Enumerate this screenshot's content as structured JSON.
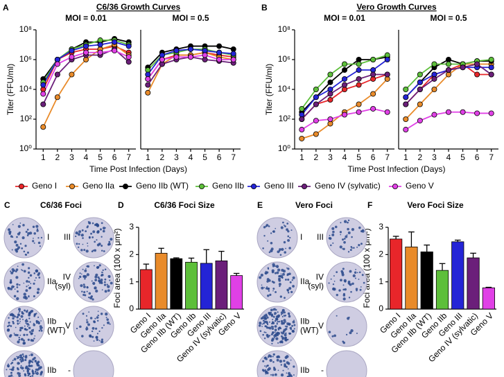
{
  "chart_data": [
    {
      "type": "line",
      "panel_label": "A",
      "title": "C6/36 Growth Curves",
      "subtitle": "MOI = 0.01",
      "x_label": "Time Post Infection (Days)",
      "y_label": "Titer (FFU/ml)",
      "x": [
        1,
        2,
        3,
        4,
        5,
        6,
        7
      ],
      "xlim": [
        0.5,
        7.5
      ],
      "xticks": [
        1,
        2,
        3,
        4,
        5,
        6,
        7
      ],
      "log_y": true,
      "ylim": [
        1,
        100000000
      ],
      "yticks": [
        {
          "value": 1,
          "label": "10⁰"
        },
        {
          "value": 100,
          "label": "10²"
        },
        {
          "value": 10000,
          "label": "10⁴"
        },
        {
          "value": 1000000,
          "label": "10⁶"
        },
        {
          "value": 100000000,
          "label": "10⁸"
        }
      ],
      "series": [
        {
          "name": "Geno I",
          "color": "#e8262a",
          "values": [
            10000,
            1000000,
            3000000,
            5000000,
            5000000,
            8000000,
            3000000
          ]
        },
        {
          "name": "Geno IIa",
          "color": "#e98b2a",
          "values": [
            30,
            3000,
            100000,
            1000000,
            5000000,
            10000000,
            2000000
          ]
        },
        {
          "name": "Geno IIb (WT)",
          "color": "#000000",
          "values": [
            50000,
            1000000,
            5000000,
            15000000,
            15000000,
            25000000,
            15000000
          ]
        },
        {
          "name": "Geno IIb",
          "color": "#5dbf3a",
          "values": [
            30000,
            1000000,
            5000000,
            10000000,
            20000000,
            20000000,
            10000000
          ]
        },
        {
          "name": "Geno III",
          "color": "#2424d6",
          "values": [
            20000,
            1000000,
            4000000,
            8000000,
            10000000,
            15000000,
            8000000
          ]
        },
        {
          "name": "Geno IV (sylvatic)",
          "color": "#6b1f7a",
          "values": [
            1000,
            100000,
            1000000,
            2000000,
            2000000,
            5000000,
            700000
          ]
        },
        {
          "name": "Geno V",
          "color": "#e040e6",
          "values": [
            5000,
            500000,
            1500000,
            3000000,
            3000000,
            4000000,
            1500000
          ]
        }
      ]
    },
    {
      "type": "line",
      "subtitle": "MOI = 0.5",
      "x": [
        1,
        2,
        3,
        4,
        5,
        6,
        7
      ],
      "xlim": [
        0.5,
        7.5
      ],
      "xticks": [
        1,
        2,
        3,
        4,
        5,
        6,
        7
      ],
      "log_y": true,
      "ylim": [
        1,
        100000000
      ],
      "series": [
        {
          "name": "Geno I",
          "color": "#e8262a",
          "values": [
            50000,
            1000000,
            2000000,
            2000000,
            3000000,
            2000000,
            1500000
          ]
        },
        {
          "name": "Geno IIa",
          "color": "#e98b2a",
          "values": [
            6000,
            500000,
            2000000,
            2000000,
            3000000,
            1500000,
            1000000
          ]
        },
        {
          "name": "Geno IIb (WT)",
          "color": "#000000",
          "values": [
            300000,
            3000000,
            5000000,
            8000000,
            8000000,
            8000000,
            5000000
          ]
        },
        {
          "name": "Geno IIb",
          "color": "#5dbf3a",
          "values": [
            200000,
            2000000,
            3000000,
            5000000,
            5000000,
            3000000,
            2000000
          ]
        },
        {
          "name": "Geno III",
          "color": "#2424d6",
          "values": [
            100000,
            2000000,
            4000000,
            5000000,
            4000000,
            3000000,
            2500000
          ]
        },
        {
          "name": "Geno IV (sylvatic)",
          "color": "#6b1f7a",
          "values": [
            20000,
            500000,
            1000000,
            1500000,
            1000000,
            800000,
            600000
          ]
        },
        {
          "name": "Geno V",
          "color": "#e040e6",
          "values": [
            50000,
            1000000,
            1500000,
            1500000,
            2000000,
            1000000,
            1000000
          ]
        }
      ]
    },
    {
      "type": "line",
      "panel_label": "B",
      "title": "Vero Growth Curves",
      "subtitle": "MOI = 0.01",
      "x_label": "Time Post Infection (Days)",
      "y_label": "Titer (FFU/ml)",
      "x": [
        1,
        2,
        3,
        4,
        5,
        6,
        7
      ],
      "xlim": [
        0.5,
        7.5
      ],
      "xticks": [
        1,
        2,
        3,
        4,
        5,
        6,
        7
      ],
      "log_y": true,
      "ylim": [
        1,
        100000000
      ],
      "yticks": [
        {
          "value": 1,
          "label": "10⁰"
        },
        {
          "value": 100,
          "label": "10²"
        },
        {
          "value": 10000,
          "label": "10⁴"
        },
        {
          "value": 1000000,
          "label": "10⁶"
        },
        {
          "value": 100000000,
          "label": "10⁸"
        }
      ],
      "series": [
        {
          "name": "Geno I",
          "color": "#e8262a",
          "values": [
            100,
            1000,
            2000,
            10000,
            20000,
            50000,
            100000
          ]
        },
        {
          "name": "Geno IIa",
          "color": "#e98b2a",
          "values": [
            5,
            10,
            50,
            300,
            1000,
            5000,
            50000
          ]
        },
        {
          "name": "Geno IIb (WT)",
          "color": "#000000",
          "values": [
            300,
            3000,
            30000,
            200000,
            1000000,
            1000000,
            1500000
          ]
        },
        {
          "name": "Geno IIb",
          "color": "#5dbf3a",
          "values": [
            500,
            10000,
            100000,
            500000,
            500000,
            1000000,
            2000000
          ]
        },
        {
          "name": "Geno III",
          "color": "#2424d6",
          "values": [
            200,
            3000,
            10000,
            50000,
            200000,
            200000,
            1000000
          ]
        },
        {
          "name": "Geno IV (sylvatic)",
          "color": "#6b1f7a",
          "values": [
            100,
            1000,
            5000,
            20000,
            50000,
            100000,
            100000
          ]
        },
        {
          "name": "Geno V",
          "color": "#e040e6",
          "values": [
            20,
            80,
            100,
            200,
            300,
            500,
            300
          ]
        }
      ]
    },
    {
      "type": "line",
      "subtitle": "MOI = 0.5",
      "x": [
        1,
        2,
        3,
        4,
        5,
        6,
        7
      ],
      "xlim": [
        0.5,
        7.5
      ],
      "xticks": [
        1,
        2,
        3,
        4,
        5,
        6,
        7
      ],
      "log_y": true,
      "ylim": [
        1,
        100000000
      ],
      "series": [
        {
          "name": "Geno I",
          "color": "#e8262a",
          "values": [
            1000,
            10000,
            100000,
            200000,
            500000,
            100000,
            100000
          ]
        },
        {
          "name": "Geno IIa",
          "color": "#e98b2a",
          "values": [
            100,
            1000,
            10000,
            100000,
            500000,
            500000,
            500000
          ]
        },
        {
          "name": "Geno IIb (WT)",
          "color": "#000000",
          "values": [
            3000,
            30000,
            300000,
            1000000,
            500000,
            800000,
            800000
          ]
        },
        {
          "name": "Geno IIb",
          "color": "#5dbf3a",
          "values": [
            10000,
            100000,
            500000,
            500000,
            500000,
            800000,
            1000000
          ]
        },
        {
          "name": "Geno III",
          "color": "#2424d6",
          "values": [
            3000,
            30000,
            100000,
            200000,
            300000,
            300000,
            300000
          ]
        },
        {
          "name": "Geno IV (sylvatic)",
          "color": "#6b1f7a",
          "values": [
            1000,
            10000,
            50000,
            200000,
            300000,
            500000,
            100000
          ]
        },
        {
          "name": "Geno V",
          "color": "#e040e6",
          "values": [
            20,
            80,
            200,
            300,
            300,
            250,
            250
          ]
        }
      ]
    },
    {
      "type": "bar",
      "panel_label": "D",
      "title": "C6/36 Foci Size",
      "y_label": "Foci area (100 x μm²)",
      "categories": [
        "Geno I",
        "Geno IIa",
        "Geno IIb (WT)",
        "Geno IIb",
        "Geno III",
        "Geno IV (sylvatic)",
        "Geno V"
      ],
      "values": [
        1.45,
        2.05,
        1.85,
        1.72,
        1.68,
        1.77,
        1.23
      ],
      "errors": [
        0.2,
        0.18,
        0.03,
        0.15,
        0.5,
        0.35,
        0.08
      ],
      "colors": [
        "#e8262a",
        "#e98b2a",
        "#000000",
        "#5dbf3a",
        "#2424d6",
        "#6b1f7a",
        "#e040e6"
      ],
      "ylim": [
        0,
        3
      ],
      "yticks": [
        0,
        1,
        2,
        3
      ]
    },
    {
      "type": "bar",
      "panel_label": "F",
      "title": "Vero Foci Size",
      "y_label": "Foci area (100 x μm²)",
      "categories": [
        "Geno I",
        "Geno IIa",
        "Geno IIb (WT)",
        "Geno IIb",
        "Geno III",
        "Geno IV (sylvatic)",
        "Geno V"
      ],
      "values": [
        2.57,
        2.28,
        2.1,
        1.42,
        2.47,
        1.88,
        0.78
      ],
      "errors": [
        0.1,
        0.55,
        0.25,
        0.25,
        0.06,
        0.17,
        0.02
      ],
      "colors": [
        "#e8262a",
        "#e98b2a",
        "#000000",
        "#5dbf3a",
        "#2424d6",
        "#6b1f7a",
        "#e040e6"
      ],
      "ylim": [
        0,
        3
      ],
      "yticks": [
        0,
        1,
        2,
        3
      ]
    }
  ],
  "foci_panels": [
    {
      "panel_label": "C",
      "title": "C6/36 Foci",
      "plates": [
        [
          "I"
        ],
        [
          "IIa"
        ],
        [
          "IIb",
          "(WT)"
        ],
        [
          "IIb"
        ],
        [
          "III"
        ],
        [
          "IV",
          "(syl)"
        ],
        [
          "V"
        ],
        [
          "-"
        ]
      ]
    },
    {
      "panel_label": "E",
      "title": "Vero Foci",
      "plates": [
        [
          "I"
        ],
        [
          "IIa"
        ],
        [
          "IIb",
          "(WT)"
        ],
        [
          "IIb"
        ],
        [
          "III"
        ],
        [
          "IV",
          "(syl)"
        ],
        [
          "V"
        ],
        [
          "-"
        ]
      ]
    }
  ]
}
